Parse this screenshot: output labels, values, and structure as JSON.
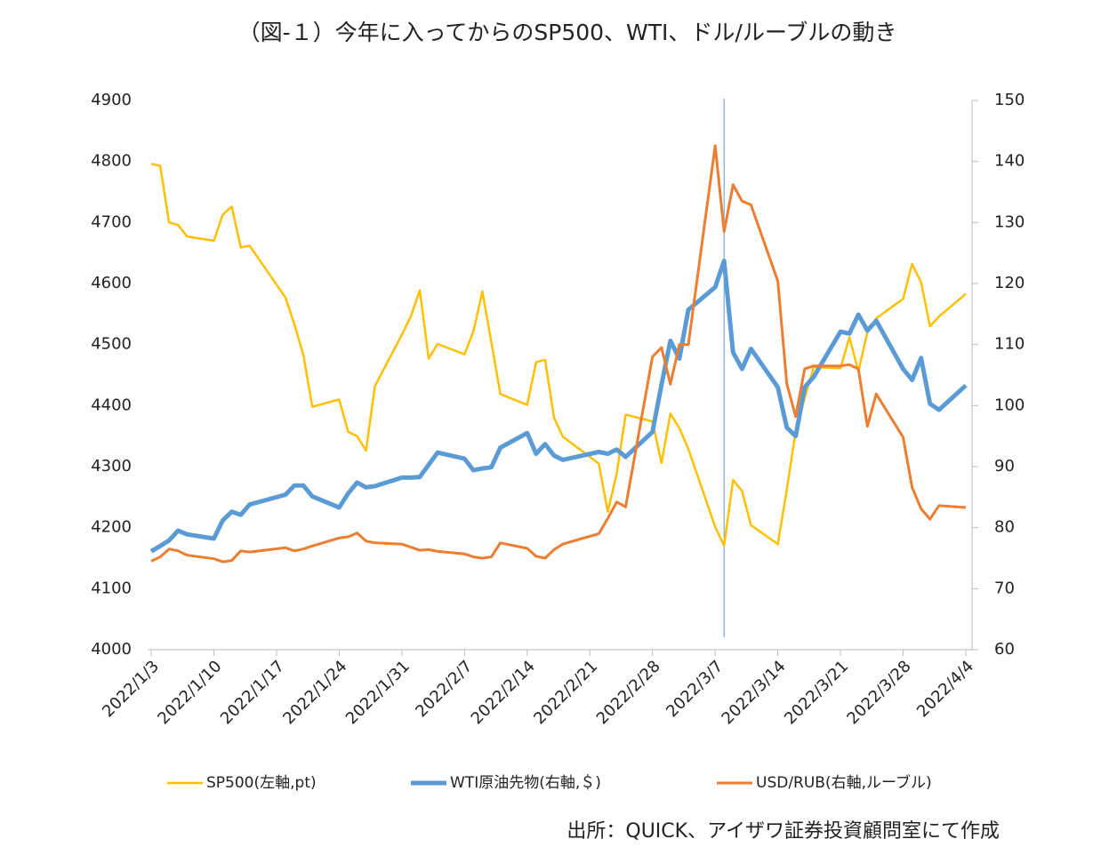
{
  "chart_data": {
    "type": "line",
    "title": "（図-１）今年に入ってからのSP500、WTI、ドル/ルーブルの動き",
    "source": "出所：QUICK、アイザワ証券投資顧問室にて作成",
    "x": [
      "2022/1/3",
      "2022/1/4",
      "2022/1/5",
      "2022/1/6",
      "2022/1/7",
      "2022/1/10",
      "2022/1/11",
      "2022/1/12",
      "2022/1/13",
      "2022/1/14",
      "2022/1/18",
      "2022/1/19",
      "2022/1/20",
      "2022/1/21",
      "2022/1/24",
      "2022/1/25",
      "2022/1/26",
      "2022/1/27",
      "2022/1/28",
      "2022/1/31",
      "2022/2/1",
      "2022/2/2",
      "2022/2/3",
      "2022/2/4",
      "2022/2/7",
      "2022/2/8",
      "2022/2/9",
      "2022/2/10",
      "2022/2/11",
      "2022/2/14",
      "2022/2/15",
      "2022/2/16",
      "2022/2/17",
      "2022/2/18",
      "2022/2/22",
      "2022/2/23",
      "2022/2/24",
      "2022/2/25",
      "2022/2/28",
      "2022/3/1",
      "2022/3/2",
      "2022/3/3",
      "2022/3/4",
      "2022/3/7",
      "2022/3/8",
      "2022/3/9",
      "2022/3/10",
      "2022/3/11",
      "2022/3/14",
      "2022/3/15",
      "2022/3/16",
      "2022/3/17",
      "2022/3/18",
      "2022/3/21",
      "2022/3/22",
      "2022/3/23",
      "2022/3/24",
      "2022/3/25",
      "2022/3/28",
      "2022/3/29",
      "2022/3/30",
      "2022/3/31",
      "2022/4/1",
      "2022/4/4"
    ],
    "xlim": [
      "2022/1/3",
      "2022/4/4"
    ],
    "xticks": [
      "2022/1/3",
      "2022/1/10",
      "2022/1/17",
      "2022/1/24",
      "2022/1/31",
      "2022/2/7",
      "2022/2/14",
      "2022/2/21",
      "2022/2/28",
      "2022/3/7",
      "2022/3/14",
      "2022/3/21",
      "2022/3/28",
      "2022/4/4"
    ],
    "marker_line": "2022/3/8",
    "ylim": [
      4000,
      4900
    ],
    "yticks": [
      4000,
      4100,
      4200,
      4300,
      4400,
      4500,
      4600,
      4700,
      4800,
      4900
    ],
    "y2lim": [
      60,
      150
    ],
    "y2ticks": [
      60,
      70,
      80,
      90,
      100,
      110,
      120,
      130,
      140,
      150
    ],
    "series": [
      {
        "name": "SP500(左軸,pt)",
        "color": "#ffc000",
        "width": 2.5,
        "values": [
          4796,
          4793,
          4700,
          4696,
          4677,
          4670,
          4713,
          4726,
          4659,
          4662,
          4577,
          4533,
          4483,
          4398,
          4410,
          4357,
          4350,
          4326,
          4432,
          4516,
          4546,
          4589,
          4477,
          4501,
          4484,
          4522,
          4587,
          4504,
          4419,
          4401,
          4471,
          4475,
          4380,
          4349,
          4305,
          4226,
          4288,
          4385,
          4374,
          4306,
          4387,
          4363,
          4329,
          4201,
          4171,
          4278,
          4260,
          4204,
          4173,
          4262,
          4358,
          4412,
          4463,
          4461,
          4512,
          4456,
          4520,
          4543,
          4575,
          4632,
          4602,
          4530,
          4546,
          4583
        ]
      },
      {
        "name": "WTI原油先物(右軸,＄)",
        "color": "#5b9bd5",
        "width": 5,
        "axis": "y2",
        "values": [
          76.1,
          77,
          77.9,
          79.5,
          78.9,
          78.2,
          81.2,
          82.6,
          82.1,
          83.8,
          85.4,
          86.9,
          86.9,
          85.1,
          83.3,
          85.6,
          87.4,
          86.6,
          86.8,
          88.2,
          88.2,
          88.3,
          90.3,
          92.3,
          91.3,
          89.4,
          89.7,
          89.9,
          93.1,
          95.5,
          92.1,
          93.7,
          91.8,
          91.1,
          92.4,
          92.1,
          92.8,
          91.6,
          95.7,
          103.4,
          110.6,
          107.7,
          115.7,
          119.4,
          123.7,
          108.7,
          106,
          109.3,
          103,
          96.4,
          95,
          103,
          104.7,
          112.1,
          111.8,
          114.9,
          112.3,
          113.9,
          106,
          104.2,
          107.8,
          100.3,
          99.3,
          103.3
        ]
      },
      {
        "name": "USD/RUB(右軸,ルーブル)",
        "color": "#ed7d31",
        "width": 3,
        "axis": "y2",
        "values": [
          74.5,
          75.2,
          76.5,
          76.2,
          75.5,
          74.9,
          74.4,
          74.6,
          76.2,
          76,
          76.7,
          76.2,
          76.5,
          77,
          78.3,
          78.5,
          79.1,
          77.8,
          77.5,
          77.3,
          76.8,
          76.3,
          76.4,
          76.1,
          75.7,
          75.2,
          75.0,
          75.2,
          77.5,
          76.6,
          75.3,
          75.0,
          76.4,
          77.3,
          79.0,
          81.5,
          84.2,
          83.4,
          108,
          109.5,
          103.5,
          110,
          110,
          142.6,
          128.5,
          136.2,
          133.5,
          132.9,
          120.4,
          103.6,
          98.2,
          106,
          106.5,
          106.5,
          106.7,
          106,
          96.6,
          101.9,
          94.8,
          86.6,
          83.1,
          81.4,
          83.6,
          83.3
        ]
      }
    ]
  }
}
